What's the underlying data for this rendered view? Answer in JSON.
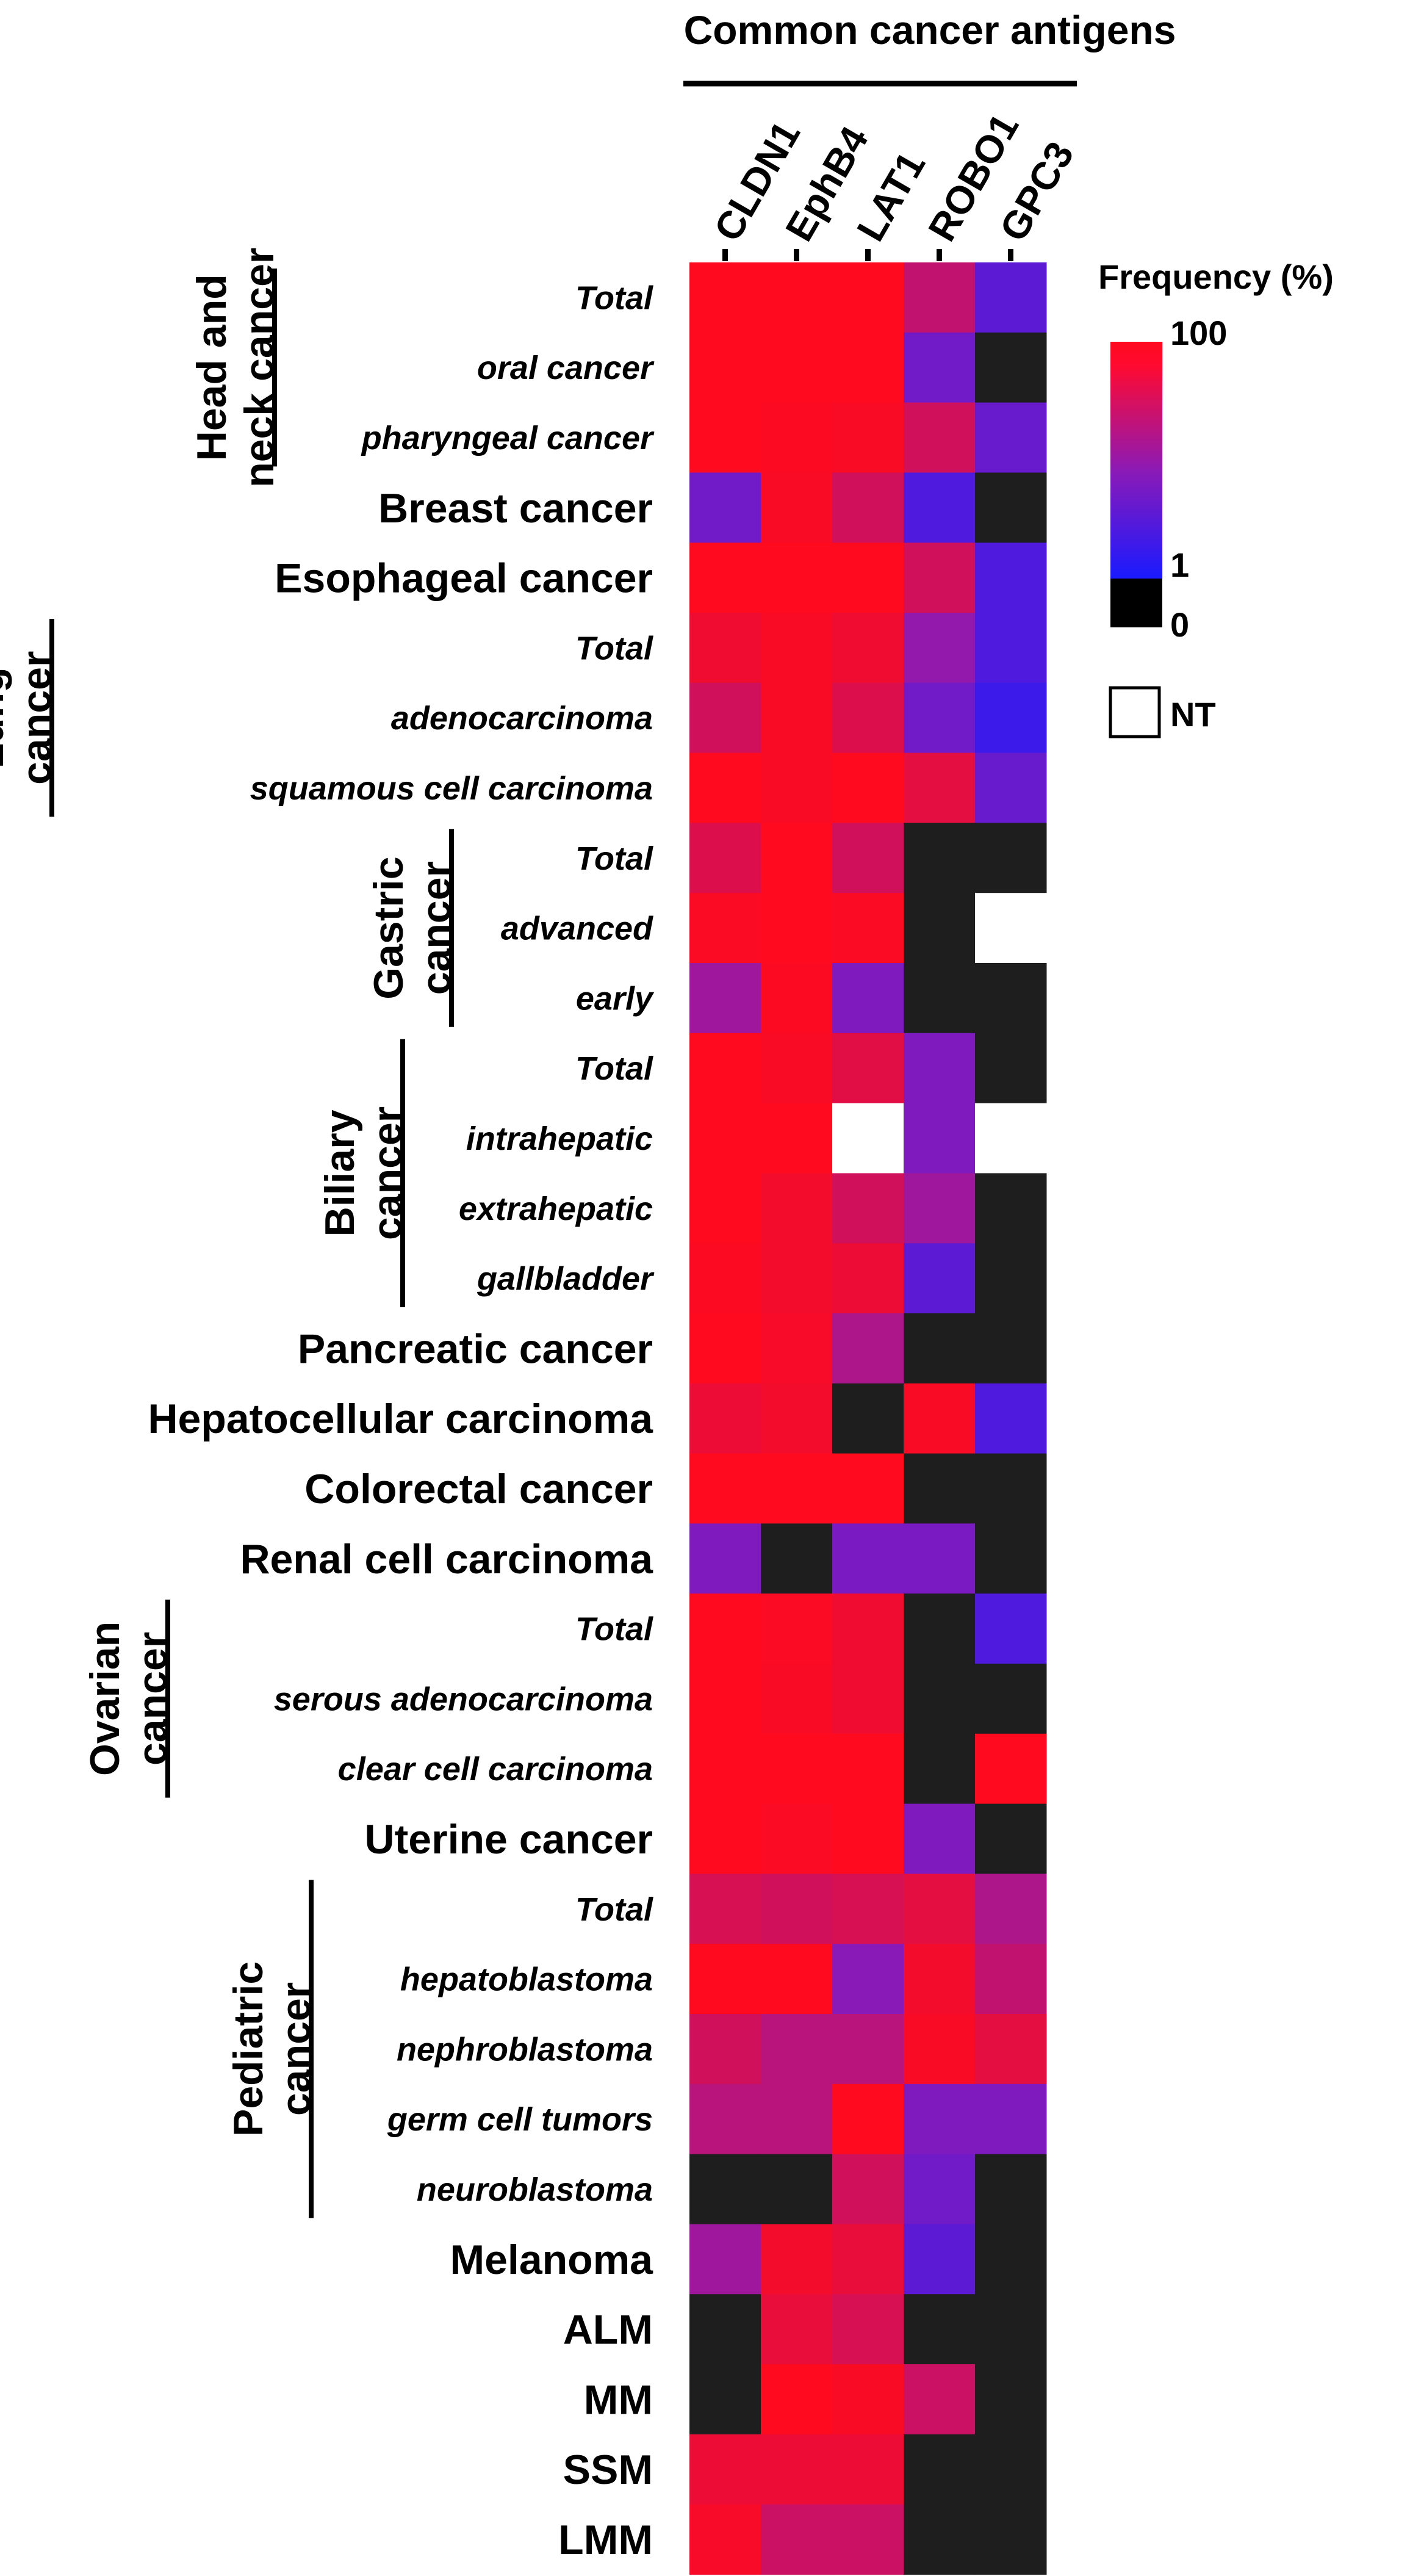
{
  "chart_data": {
    "type": "heatmap",
    "title": "Common cancer antigens",
    "columns": [
      "CLDN1",
      "EphB4",
      "LAT1",
      "ROBO1",
      "GPC3"
    ],
    "rows": [
      {
        "label": "Total",
        "italic": true,
        "values": [
          100,
          100,
          100,
          30,
          4
        ]
      },
      {
        "label": "oral cancer",
        "italic": true,
        "values": [
          100,
          100,
          100,
          6,
          0
        ]
      },
      {
        "label": "pharyngeal  cancer",
        "italic": true,
        "values": [
          100,
          95,
          90,
          40,
          5
        ]
      },
      {
        "label": "Breast cancer",
        "italic": false,
        "values": [
          6,
          90,
          40,
          3,
          0
        ]
      },
      {
        "label": "Esophageal cancer",
        "italic": false,
        "values": [
          100,
          100,
          100,
          40,
          3
        ]
      },
      {
        "label": "Total",
        "italic": true,
        "values": [
          75,
          90,
          75,
          12,
          3
        ]
      },
      {
        "label": "adenocarcinoma",
        "italic": true,
        "values": [
          40,
          90,
          50,
          6,
          2
        ]
      },
      {
        "label": "squamous cell carcinoma",
        "italic": true,
        "values": [
          100,
          90,
          100,
          60,
          5
        ]
      },
      {
        "label": "Total",
        "italic": true,
        "values": [
          50,
          100,
          40,
          0,
          0
        ]
      },
      {
        "label": "advanced",
        "italic": true,
        "values": [
          92,
          100,
          92,
          0,
          null
        ]
      },
      {
        "label": "early",
        "italic": true,
        "values": [
          15,
          95,
          8,
          0,
          0
        ]
      },
      {
        "label": "Total",
        "italic": true,
        "values": [
          100,
          90,
          55,
          8,
          0
        ]
      },
      {
        "label": "intrahepatic",
        "italic": true,
        "values": [
          100,
          100,
          null,
          8,
          null
        ]
      },
      {
        "label": "extrahepatic",
        "italic": true,
        "values": [
          100,
          80,
          40,
          15,
          0
        ]
      },
      {
        "label": "gallbladder",
        "italic": true,
        "values": [
          95,
          80,
          70,
          4,
          0
        ]
      },
      {
        "label": "Pancreatic cancer",
        "italic": false,
        "values": [
          100,
          85,
          20,
          0,
          0
        ]
      },
      {
        "label": "Hepatocellular carcinoma",
        "italic": false,
        "values": [
          70,
          80,
          0,
          90,
          3
        ]
      },
      {
        "label": "Colorectal cancer",
        "italic": false,
        "values": [
          100,
          100,
          100,
          0,
          0
        ]
      },
      {
        "label": "Renal cell carcinoma",
        "italic": false,
        "values": [
          8,
          0,
          7,
          7,
          0
        ]
      },
      {
        "label": "Total",
        "italic": true,
        "values": [
          100,
          92,
          75,
          0,
          3
        ]
      },
      {
        "label": "serous adenocarcinoma",
        "italic": true,
        "values": [
          100,
          90,
          75,
          0,
          0
        ]
      },
      {
        "label": "clear cell carcinoma",
        "italic": true,
        "values": [
          100,
          100,
          100,
          0,
          100
        ]
      },
      {
        "label": "Uterine cancer",
        "italic": false,
        "values": [
          100,
          92,
          100,
          8,
          0
        ]
      },
      {
        "label": "Total",
        "italic": true,
        "values": [
          45,
          40,
          45,
          60,
          20
        ]
      },
      {
        "label": "hepatoblastoma",
        "italic": true,
        "values": [
          100,
          100,
          10,
          80,
          30
        ]
      },
      {
        "label": "nephroblastoma",
        "italic": true,
        "values": [
          40,
          25,
          25,
          90,
          60
        ]
      },
      {
        "label": "germ cell tumors",
        "italic": true,
        "values": [
          25,
          25,
          100,
          8,
          8
        ]
      },
      {
        "label": "neuroblastoma",
        "italic": true,
        "values": [
          0,
          0,
          40,
          6,
          0
        ]
      },
      {
        "label": "Melanoma",
        "italic": false,
        "values": [
          15,
          80,
          65,
          4,
          0
        ]
      },
      {
        "label": "ALM",
        "italic": false,
        "values": [
          0,
          65,
          45,
          0,
          0
        ]
      },
      {
        "label": "MM",
        "italic": false,
        "values": [
          0,
          100,
          90,
          35,
          0
        ]
      },
      {
        "label": "SSM",
        "italic": false,
        "values": [
          70,
          70,
          70,
          0,
          0
        ]
      },
      {
        "label": "LMM",
        "italic": false,
        "values": [
          85,
          35,
          35,
          0,
          0
        ]
      }
    ],
    "row_groups": [
      {
        "lines": [
          "Head and",
          "neck cancer"
        ],
        "from": 0,
        "to": 2
      },
      {
        "lines": [
          "Lung",
          "cancer"
        ],
        "from": 5,
        "to": 7
      },
      {
        "lines": [
          "Gastric",
          "cancer"
        ],
        "from": 8,
        "to": 10
      },
      {
        "lines": [
          "Biliary",
          "cancer"
        ],
        "from": 11,
        "to": 14
      },
      {
        "lines": [
          "Ovarian",
          "cancer"
        ],
        "from": 19,
        "to": 21
      },
      {
        "lines": [
          "Pediatric",
          "cancer"
        ],
        "from": 23,
        "to": 27
      }
    ],
    "legend": {
      "title": "Frequency (%)",
      "max_label": "100",
      "mid_label": "1",
      "min_label": "0",
      "nt_label": "NT",
      "scale": "log",
      "colors": {
        "low": "#1a1aff",
        "mid": "#8a1ab8",
        "high": "#ff0a1e",
        "zero": "#1e1e1e",
        "nt": "#ffffff"
      }
    }
  }
}
